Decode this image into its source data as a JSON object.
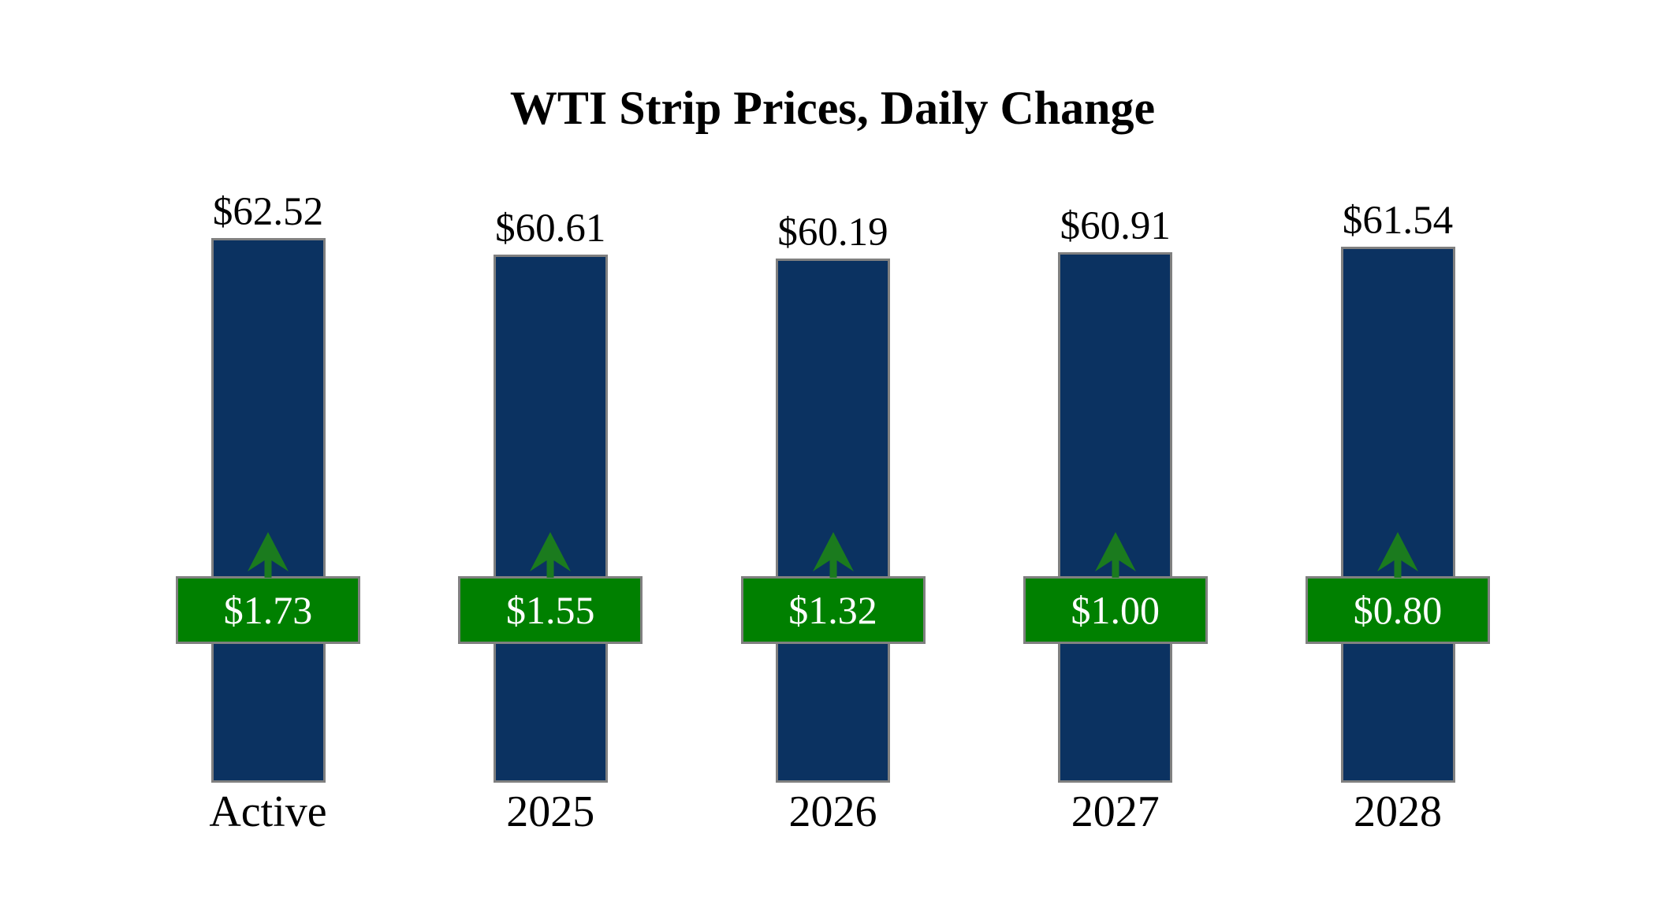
{
  "title": "WTI Strip Prices, Daily Change",
  "chart_data": {
    "type": "bar",
    "title": "WTI Strip Prices, Daily Change",
    "categories": [
      "Active",
      "2025",
      "2026",
      "2027",
      "2028"
    ],
    "series": [
      {
        "name": "strip_price",
        "values": [
          62.52,
          60.61,
          60.19,
          60.91,
          61.54
        ],
        "labels": [
          "$62.52",
          "$60.61",
          "$60.19",
          "$60.91",
          "$61.54"
        ],
        "label_position": "above-bar"
      },
      {
        "name": "daily_change",
        "values": [
          1.73,
          1.55,
          1.32,
          1.0,
          0.8
        ],
        "labels": [
          "$1.73",
          "$1.55",
          "$1.32",
          "$1.00",
          "$0.80"
        ],
        "direction": "up",
        "label_position": "badge-on-bar"
      }
    ],
    "ylim": [
      0,
      62.52
    ],
    "xlabel": "",
    "ylabel": "",
    "grid": false,
    "legend": false,
    "axes_visible": false
  },
  "colors": {
    "background": "#FFFFFF",
    "bar_fill": "#0B3261",
    "bar_border": "#808080",
    "badge_fill": "#008000",
    "badge_border": "#808080",
    "arrow": "#1B7B1E",
    "badge_text": "#FFFFFF",
    "label_text": "#000000"
  },
  "icons": {
    "up_arrow": "up-arrow-icon"
  }
}
